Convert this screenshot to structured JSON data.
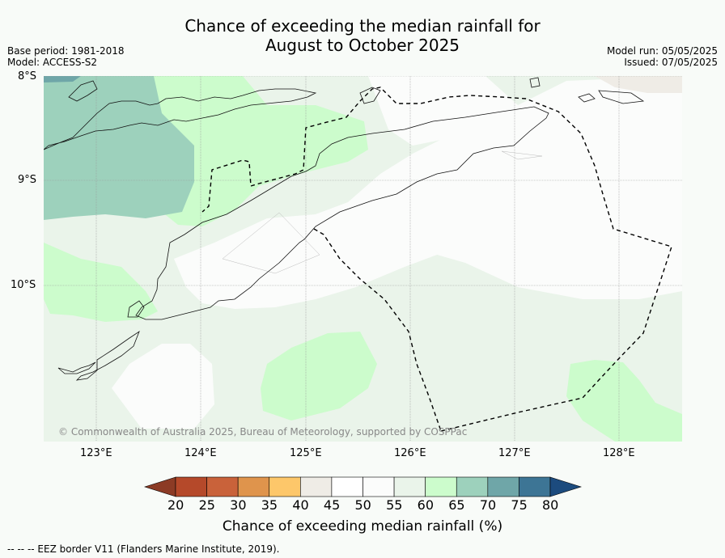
{
  "title": {
    "line1": "Chance of exceeding the median rainfall for",
    "line2": "August to October 2025"
  },
  "meta_left": {
    "base_period": "Base period: 1981-2018",
    "model": "Model: ACCESS-S2"
  },
  "meta_right": {
    "model_run": "Model run: 05/05/2025",
    "issued": "Issued: 07/05/2025"
  },
  "map": {
    "lat_labels": [
      "8°S",
      "9°S",
      "10°S"
    ],
    "lon_labels": [
      "123°E",
      "124°E",
      "125°E",
      "126°E",
      "127°E",
      "128°E"
    ],
    "copyright": "© Commonwealth of Australia 2025, Bureau of Meteorology, supported by COSPPac"
  },
  "colorbar": {
    "ticks": [
      "20",
      "25",
      "30",
      "35",
      "40",
      "45",
      "50",
      "55",
      "60",
      "65",
      "70",
      "75",
      "80"
    ],
    "colors": [
      "#8c3b25",
      "#b5492a",
      "#c9623a",
      "#df944c",
      "#fdc76a",
      "#efece6",
      "#ffffff",
      "#fbfcfb",
      "#eaf4ea",
      "#ccfccc",
      "#9dd1bc",
      "#6fa6a8",
      "#3d7595",
      "#1c4b7e"
    ],
    "label": "Chance of exceeding median rainfall (%)"
  },
  "footer": "--  --  -- EEZ border V11 (Flanders Marine Institute, 2019)."
}
